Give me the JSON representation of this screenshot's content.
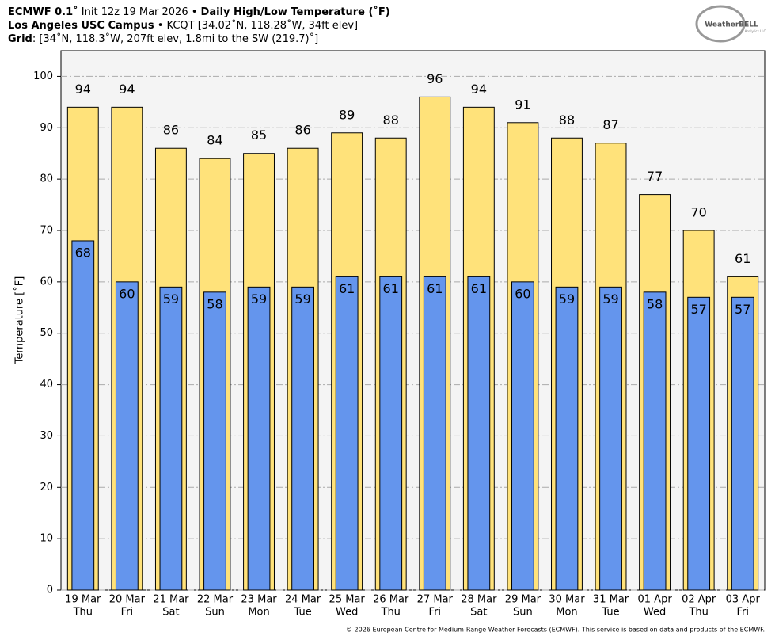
{
  "chart_data": {
    "type": "bar",
    "model": "ECMWF 0.1˚",
    "init": " Init 12z 19 Mar 2026 • ",
    "title": "Daily High/Low Temperature (˚F)",
    "station": "Los Angeles USC Campus",
    "station_info": " • KCQT [34.02˚N, 118.28˚W, 34ft elev]",
    "grid_label": "Grid",
    "grid_info": ": [34˚N, 118.3˚W, 207ft elev, 1.8mi to the SW (219.7)˚]",
    "logo": "WeatherBELL",
    "logo_sub": "Analytics LLC",
    "footer": "© 2026 European Centre for Medium-Range Weather Forecasts (ECMWF). This service is based on data and products of the ECMWF.",
    "ylabel": "Temperature [˚F]",
    "categories": [
      "19 Mar",
      "20 Mar",
      "21 Mar",
      "22 Mar",
      "23 Mar",
      "24 Mar",
      "25 Mar",
      "26 Mar",
      "27 Mar",
      "28 Mar",
      "29 Mar",
      "30 Mar",
      "31 Mar",
      "01 Apr",
      "02 Apr",
      "03 Apr"
    ],
    "weekdays": [
      "Thu",
      "Fri",
      "Sat",
      "Sun",
      "Mon",
      "Tue",
      "Wed",
      "Thu",
      "Fri",
      "Sat",
      "Sun",
      "Mon",
      "Tue",
      "Wed",
      "Thu",
      "Fri"
    ],
    "series": [
      {
        "color": "#ffe27a",
        "values": [
          94,
          94,
          86,
          84,
          85,
          86,
          89,
          88,
          96,
          94,
          91,
          88,
          87,
          77,
          70,
          61
        ]
      },
      {
        "color": "#6495ed",
        "values": [
          68,
          60,
          59,
          58,
          59,
          59,
          61,
          61,
          61,
          61,
          60,
          59,
          59,
          58,
          57,
          57
        ]
      }
    ],
    "ylim": [
      0,
      105
    ],
    "yticks": [
      0,
      10,
      20,
      30,
      40,
      50,
      60,
      70,
      80,
      90,
      100
    ],
    "grid": true
  }
}
